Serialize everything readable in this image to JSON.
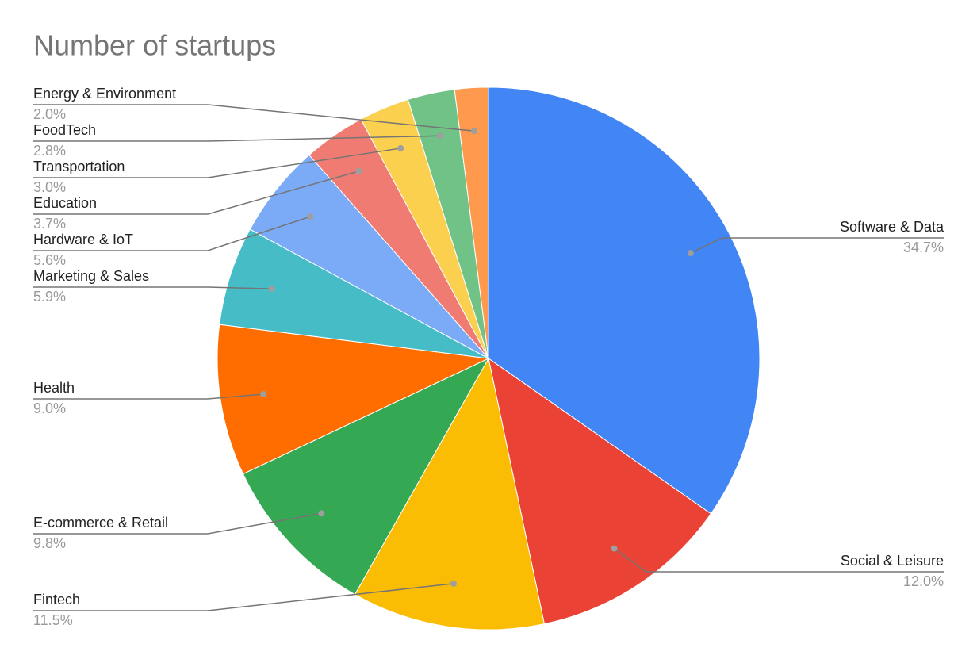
{
  "chart_data": {
    "type": "pie",
    "title": "Number of startups",
    "categories": [
      "Software & Data",
      "Social & Leisure",
      "Fintech",
      "E-commerce & Retail",
      "Health",
      "Marketing & Sales",
      "Hardware & IoT",
      "Education",
      "Transportation",
      "FoodTech",
      "Energy & Environment"
    ],
    "values": [
      34.7,
      12.0,
      11.5,
      9.8,
      9.0,
      5.9,
      5.6,
      3.7,
      3.0,
      2.8,
      2.0
    ],
    "value_labels": [
      "34.7%",
      "12.0%",
      "11.5%",
      "9.8%",
      "9.0%",
      "5.9%",
      "5.6%",
      "3.7%",
      "3.0%",
      "2.8%",
      "2.0%"
    ],
    "colors": [
      "#4285f4",
      "#ea4335",
      "#fbbc04",
      "#34a853",
      "#ff6d01",
      "#46bdc6",
      "#7baaf7",
      "#f07b72",
      "#fcd04f",
      "#71c287",
      "#ff994d"
    ]
  }
}
